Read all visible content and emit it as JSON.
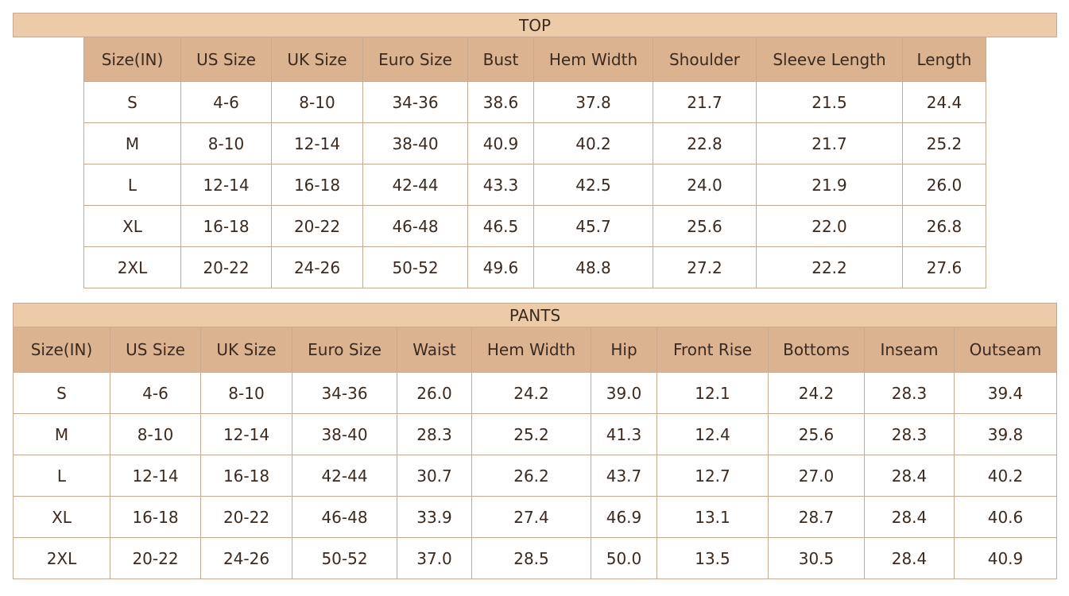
{
  "top": {
    "title": "TOP",
    "header": [
      "Size(IN)",
      "US Size",
      "UK Size",
      "Euro Size",
      "Bust",
      "Hem Width",
      "Shoulder",
      "Sleeve Length",
      "Length"
    ],
    "rows": [
      [
        "S",
        "4-6",
        "8-10",
        "34-36",
        "38.6",
        "37.8",
        "21.7",
        "21.5",
        "24.4"
      ],
      [
        "M",
        "8-10",
        "12-14",
        "38-40",
        "40.9",
        "40.2",
        "22.8",
        "21.7",
        "25.2"
      ],
      [
        "L",
        "12-14",
        "16-18",
        "42-44",
        "43.3",
        "42.5",
        "24.0",
        "21.9",
        "26.0"
      ],
      [
        "XL",
        "16-18",
        "20-22",
        "46-48",
        "46.5",
        "45.7",
        "25.6",
        "22.0",
        "26.8"
      ],
      [
        "2XL",
        "20-22",
        "24-26",
        "50-52",
        "49.6",
        "48.8",
        "27.2",
        "22.2",
        "27.6"
      ]
    ]
  },
  "pants": {
    "title": "PANTS",
    "header": [
      "Size(IN)",
      "US Size",
      "UK Size",
      "Euro Size",
      "Waist",
      "Hem Width",
      "Hip",
      "Front Rise",
      "Bottoms",
      "Inseam",
      "Outseam"
    ],
    "rows": [
      [
        "S",
        "4-6",
        "8-10",
        "34-36",
        "26.0",
        "24.2",
        "39.0",
        "12.1",
        "24.2",
        "28.3",
        "39.4"
      ],
      [
        "M",
        "8-10",
        "12-14",
        "38-40",
        "28.3",
        "25.2",
        "41.3",
        "12.4",
        "25.6",
        "28.3",
        "39.8"
      ],
      [
        "L",
        "12-14",
        "16-18",
        "42-44",
        "30.7",
        "26.2",
        "43.7",
        "12.7",
        "27.0",
        "28.4",
        "40.2"
      ],
      [
        "XL",
        "16-18",
        "20-22",
        "46-48",
        "33.9",
        "27.4",
        "46.9",
        "13.1",
        "28.7",
        "28.4",
        "40.6"
      ],
      [
        "2XL",
        "20-22",
        "24-26",
        "50-52",
        "37.0",
        "28.5",
        "50.0",
        "13.5",
        "30.5",
        "28.4",
        "40.9"
      ]
    ]
  }
}
